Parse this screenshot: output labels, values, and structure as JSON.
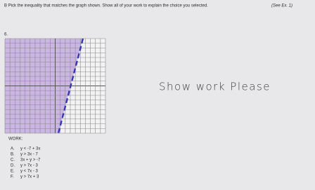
{
  "header": {
    "instruction": "B Pick the inequality that matches the graph shown.  Show all of your work to explain the choice you selected.",
    "reference": "(See Ex. 1)"
  },
  "problem": {
    "number": "6."
  },
  "note": "Show  work  Please",
  "work_label": "WORK:",
  "options": [
    {
      "letter": "A.",
      "text": "y < -7 + 3x"
    },
    {
      "letter": "B.",
      "text": "y > 3x - 7"
    },
    {
      "letter": "C.",
      "text": "3x + y > -7"
    },
    {
      "letter": "D.",
      "text": "y > 7x - 3"
    },
    {
      "letter": "E.",
      "text": "y < 7x - 3"
    },
    {
      "letter": "F.",
      "text": "y > 7x + 3"
    }
  ]
}
